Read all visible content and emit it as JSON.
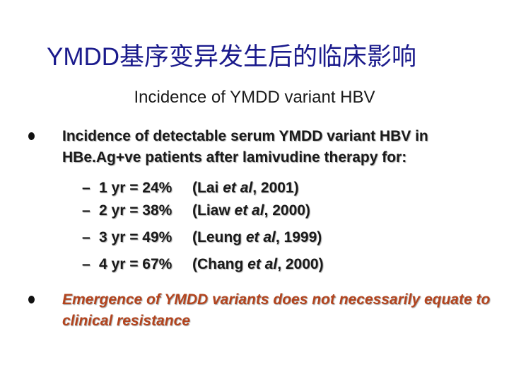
{
  "slide": {
    "title": "YMDD基序变异发生后的临床影响",
    "subtitle": "Incidence of YMDD variant HBV",
    "bullets": [
      {
        "text": "Incidence of detectable serum YMDD variant HBV in HBe.Ag+ve patients after lamivudine therapy for:",
        "color": "#1a1a1a"
      },
      {
        "text": "Emergence of YMDD variants does not necessarily equate to clinical resistance",
        "color": "#b3441e"
      }
    ],
    "sub_items": [
      {
        "dash": "–",
        "stat": "1 yr = 24%",
        "author": "(Lai",
        "etal": "et al",
        "year": ", 2001)"
      },
      {
        "dash": "–",
        "stat": "2 yr = 38%",
        "author": "(Liaw",
        "etal": "et al",
        "year": ", 2000)"
      },
      {
        "dash": "–",
        "stat": "3 yr = 49%",
        "author": "(Leung",
        "etal": "et al",
        "year": ", 1999)"
      },
      {
        "dash": "–",
        "stat": "4 yr = 67%",
        "author": "(Chang",
        "etal": "et al",
        "year": ", 2000)"
      }
    ]
  }
}
